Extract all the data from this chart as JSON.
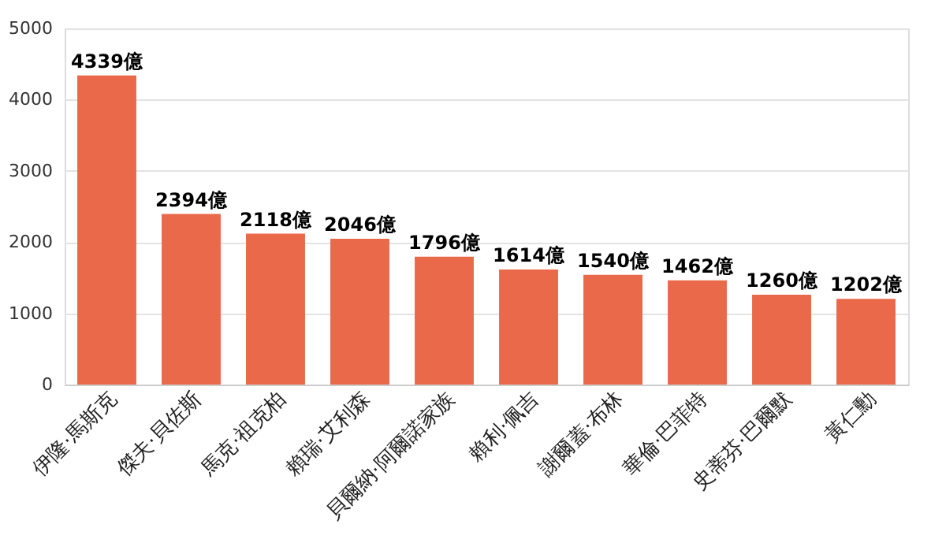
{
  "chart_data": {
    "type": "bar",
    "categories": [
      "伊隆·馬斯克",
      "傑夫·貝佐斯",
      "馬克·祖克柏",
      "賴瑞·艾利森",
      "貝爾納·阿爾諾家族",
      "賴利·佩吉",
      "謝爾蓋·布林",
      "華倫·巴菲特",
      "史蒂芬·巴爾默",
      "黃仁勳"
    ],
    "values": [
      4339,
      2394,
      2118,
      2046,
      1796,
      1614,
      1540,
      1462,
      1260,
      1202
    ],
    "value_labels": [
      "4339億",
      "2394億",
      "2118億",
      "2046億",
      "1796億",
      "1614億",
      "1540億",
      "1462億",
      "1260億",
      "1202億"
    ],
    "color": "#e9694a",
    "ylim": [
      0,
      5000
    ],
    "yticks": [
      0,
      1000,
      2000,
      3000,
      4000,
      5000
    ],
    "grid": "y"
  }
}
